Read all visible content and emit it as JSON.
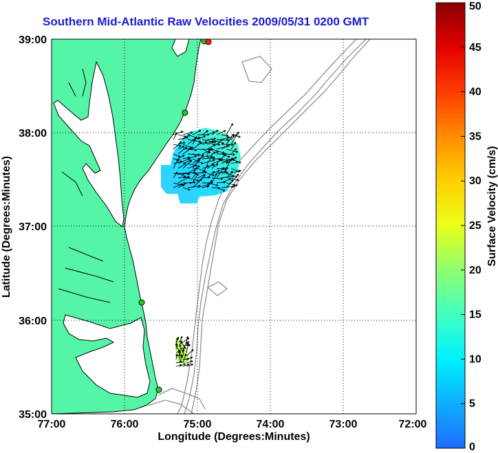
{
  "title": "Southern Mid-Atlantic Raw Velocities 2009/05/31 0200 GMT",
  "x_axis": {
    "label": "Longitude (Degrees:Minutes)",
    "ticks": [
      "77:00",
      "76:00",
      "75:00",
      "74:00",
      "73:00",
      "72:00"
    ]
  },
  "y_axis": {
    "label": "Latitude (Degrees:Minutes)",
    "ticks": [
      "39:00",
      "38:00",
      "37:00",
      "36:00",
      "35:00"
    ]
  },
  "colorbar": {
    "label": "Surface Velocity (cm/s)",
    "ticks": [
      "50",
      "45",
      "40",
      "35",
      "30",
      "25",
      "20",
      "15",
      "10",
      "5",
      "0"
    ],
    "min": 0,
    "max": 50
  },
  "colors": {
    "land": "#55f5a8",
    "water": "#ffffff",
    "coastline": "#000000",
    "bathymetry": "#909090",
    "grid": "#000000",
    "vectors": "#000000",
    "site_marker": "#22cc22",
    "site_marker_offline": "#ff2200",
    "title": "#1a1ad6"
  },
  "map_extent": {
    "lon_min": -77.0,
    "lon_max": -72.0,
    "lat_min": 35.0,
    "lat_max": 39.0
  }
}
